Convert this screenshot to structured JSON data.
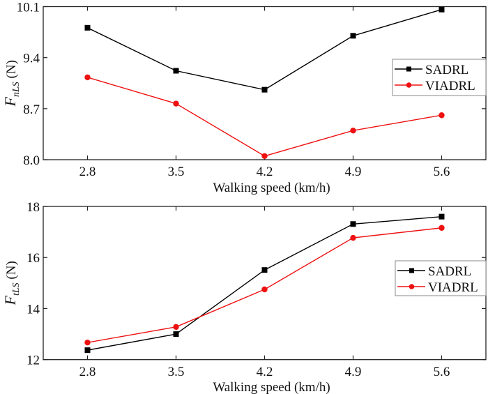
{
  "chart_data": [
    {
      "type": "line",
      "title": "",
      "xlabel": "Walking speed (km/h)",
      "ylabel": {
        "main": "F",
        "subscript": "nLS",
        "unit": " (N)"
      },
      "x": [
        2.8,
        3.5,
        4.2,
        4.9,
        5.6
      ],
      "xticks": [
        "2.8",
        "3.5",
        "4.2",
        "4.9",
        "5.6"
      ],
      "ylim": [
        8.0,
        10.1
      ],
      "yticks": [
        8.0,
        8.7,
        9.4,
        10.1
      ],
      "ytick_labels": [
        "8.0",
        "8.7",
        "9.4",
        "10.1"
      ],
      "grid": false,
      "legend_position": "right",
      "series": [
        {
          "name": "SADRL",
          "color": "#000000",
          "marker": "square",
          "values": [
            9.81,
            9.22,
            8.96,
            9.7,
            10.06
          ]
        },
        {
          "name": "VIADRL",
          "color": "#ee1111",
          "marker": "circle",
          "values": [
            9.13,
            8.77,
            8.05,
            8.4,
            8.61
          ]
        }
      ]
    },
    {
      "type": "line",
      "title": "",
      "xlabel": "Walking speed (km/h)",
      "ylabel": {
        "main": "F",
        "subscript": "tLS",
        "unit": " (N)"
      },
      "x": [
        2.8,
        3.5,
        4.2,
        4.9,
        5.6
      ],
      "xticks": [
        "2.8",
        "3.5",
        "4.2",
        "4.9",
        "5.6"
      ],
      "ylim": [
        12,
        18
      ],
      "yticks": [
        12,
        14,
        16,
        18
      ],
      "ytick_labels": [
        "12",
        "14",
        "16",
        "18"
      ],
      "grid": false,
      "legend_position": "right",
      "series": [
        {
          "name": "SADRL",
          "color": "#000000",
          "marker": "square",
          "values": [
            12.37,
            13.0,
            15.51,
            17.31,
            17.6
          ]
        },
        {
          "name": "VIADRL",
          "color": "#ee1111",
          "marker": "circle",
          "values": [
            12.67,
            13.28,
            14.75,
            16.77,
            17.16
          ]
        }
      ]
    }
  ]
}
